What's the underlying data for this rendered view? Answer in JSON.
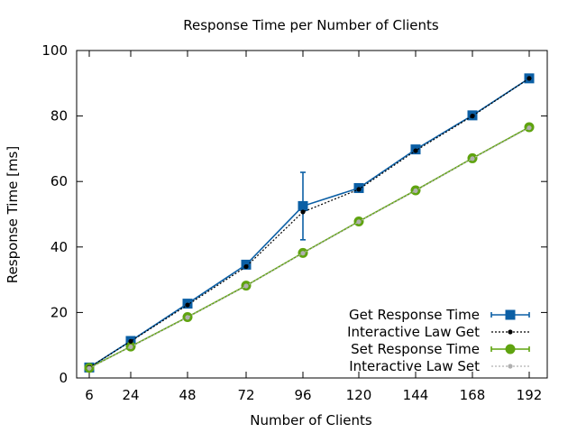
{
  "chart_data": {
    "type": "line",
    "title": "Response Time per Number of Clients",
    "xlabel": "Number of Clients",
    "ylabel": "Response Time [ms]",
    "categories": [
      "6",
      "24",
      "48",
      "72",
      "96",
      "120",
      "144",
      "168",
      "192"
    ],
    "x": [
      6,
      24,
      48,
      72,
      96,
      120,
      144,
      168,
      192
    ],
    "ylim": [
      0,
      100
    ],
    "yticks": [
      0,
      20,
      40,
      60,
      80,
      100
    ],
    "grid": false,
    "legend_position": "bottom-right",
    "series": [
      {
        "name": "Get Response Time",
        "color": "#0b5fa5",
        "marker": "square",
        "values": [
          3.2,
          11.3,
          22.7,
          34.6,
          52.5,
          58.0,
          69.8,
          80.2,
          91.5
        ],
        "error": [
          0,
          0,
          0,
          0,
          10.3,
          0,
          0,
          0,
          0
        ]
      },
      {
        "name": "Interactive Law Get",
        "color": "#000000",
        "marker": "dot",
        "dashed": true,
        "values": [
          3.2,
          11.2,
          22.3,
          34.0,
          50.7,
          57.6,
          69.4,
          80.0,
          91.5
        ]
      },
      {
        "name": "Set Response Time",
        "color": "#5fa30f",
        "marker": "circle",
        "values": [
          3.1,
          9.6,
          18.6,
          28.2,
          38.2,
          47.8,
          57.3,
          67.1,
          76.6
        ],
        "error": [
          0,
          0,
          0,
          0,
          0,
          0,
          0,
          0,
          0
        ]
      },
      {
        "name": "Interactive Law Set",
        "color": "#b0b0b0",
        "marker": "dot",
        "dashed": true,
        "values": [
          3.0,
          9.5,
          18.5,
          28.1,
          38.1,
          47.7,
          57.2,
          67.0,
          76.4
        ]
      }
    ]
  }
}
